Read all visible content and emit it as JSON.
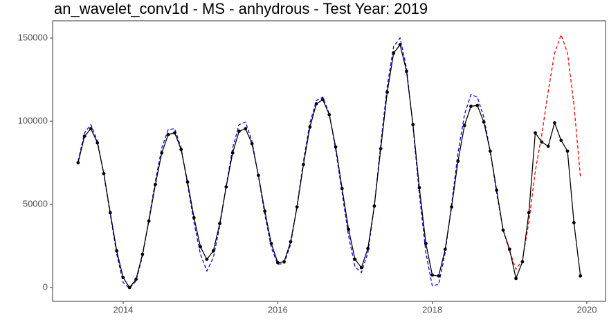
{
  "chart_data": {
    "type": "line",
    "title": "an_wavelet_conv1d - MS - anhydrous - Test Year: 2019",
    "x": [
      2013.417,
      2013.5,
      2013.583,
      2013.667,
      2013.75,
      2013.833,
      2013.917,
      2014,
      2014.083,
      2014.167,
      2014.25,
      2014.333,
      2014.417,
      2014.5,
      2014.583,
      2014.667,
      2014.75,
      2014.833,
      2014.917,
      2015,
      2015.083,
      2015.167,
      2015.25,
      2015.333,
      2015.417,
      2015.5,
      2015.583,
      2015.667,
      2015.75,
      2015.833,
      2015.917,
      2016,
      2016.083,
      2016.167,
      2016.25,
      2016.333,
      2016.417,
      2016.5,
      2016.583,
      2016.667,
      2016.75,
      2016.833,
      2016.917,
      2017,
      2017.083,
      2017.167,
      2017.25,
      2017.333,
      2017.417,
      2017.5,
      2017.583,
      2017.667,
      2017.75,
      2017.833,
      2017.917,
      2018,
      2018.083,
      2018.167,
      2018.25,
      2018.333,
      2018.417,
      2018.5,
      2018.583,
      2018.667,
      2018.75,
      2018.833,
      2018.917,
      2019,
      2019.083,
      2019.167,
      2019.25,
      2019.333,
      2019.417,
      2019.5,
      2019.583,
      2019.667,
      2019.75,
      2019.833,
      2019.917
    ],
    "series": [
      {
        "color": "#0000ff",
        "dash": true,
        "markers": false,
        "values": [
          76000,
          93000,
          98000,
          88000,
          68000,
          44000,
          20000,
          3000,
          -500,
          4000,
          19000,
          41000,
          64000,
          84000,
          95000,
          95500,
          84000,
          62000,
          39000,
          20000,
          10000,
          18000,
          37000,
          61000,
          84000,
          98000,
          99500,
          88000,
          67000,
          44000,
          24000,
          14000,
          14500,
          26000,
          49000,
          76000,
          99000,
          112500,
          114500,
          104500,
          83000,
          57000,
          31000,
          12500,
          9000,
          21000,
          49000,
          86000,
          121000,
          145000,
          150000,
          132000,
          97000,
          56000,
          21000,
          1000,
          2000,
          21000,
          50000,
          81000,
          104000,
          116000,
          114500,
          102500,
          82000,
          57000,
          34500,
          null,
          null,
          null,
          null,
          null,
          null,
          null,
          null,
          null,
          null,
          null,
          null
        ]
      },
      {
        "color": "#ff0000",
        "dash": true,
        "markers": false,
        "values": [
          null,
          null,
          null,
          null,
          null,
          null,
          null,
          null,
          null,
          null,
          null,
          null,
          null,
          null,
          null,
          null,
          null,
          null,
          null,
          null,
          null,
          null,
          null,
          null,
          null,
          null,
          null,
          null,
          null,
          null,
          null,
          null,
          null,
          null,
          null,
          null,
          null,
          null,
          null,
          null,
          null,
          null,
          null,
          null,
          null,
          null,
          null,
          null,
          null,
          null,
          null,
          null,
          null,
          null,
          null,
          null,
          null,
          null,
          null,
          null,
          null,
          null,
          null,
          null,
          null,
          null,
          34500,
          22000,
          11000,
          16500,
          39500,
          70000,
          92000,
          118000,
          141000,
          152000,
          141000,
          110000,
          66500
        ]
      },
      {
        "color": "#000000",
        "dash": false,
        "markers": true,
        "values": [
          75000,
          91000,
          95500,
          87000,
          68500,
          45000,
          22000,
          6000,
          0,
          5000,
          20000,
          40000,
          62000,
          81000,
          92000,
          93000,
          83000,
          63500,
          42000,
          24500,
          17000,
          22000,
          38500,
          60500,
          81000,
          94000,
          95500,
          86500,
          67500,
          46000,
          26500,
          15000,
          15500,
          27500,
          48500,
          74000,
          96500,
          110500,
          113000,
          104000,
          84500,
          59500,
          35000,
          17000,
          12000,
          23500,
          49000,
          83500,
          117500,
          141000,
          146000,
          130000,
          98000,
          60000,
          26500,
          7500,
          7000,
          23000,
          48500,
          76000,
          97500,
          109000,
          109500,
          99500,
          82000,
          58500,
          34500,
          23000,
          5500,
          15500,
          45000,
          93000,
          87500,
          85000,
          99000,
          88500,
          82000,
          39000,
          7000
        ]
      }
    ],
    "xlim": [
      2013.087,
      2020.242
    ],
    "xticks": [
      2014,
      2016,
      2018,
      2020
    ],
    "ylim": [
      -8300,
      160400
    ],
    "yticks": [
      0,
      50000,
      100000,
      150000
    ],
    "grid": false
  }
}
